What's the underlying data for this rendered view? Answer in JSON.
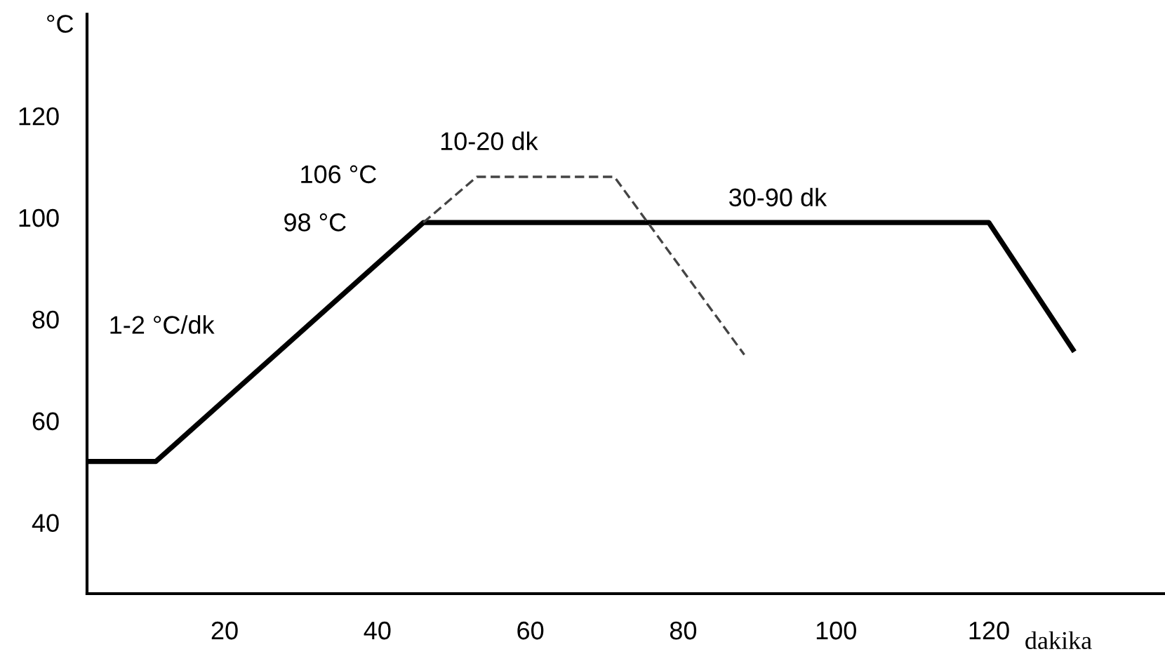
{
  "chart_data": {
    "type": "line",
    "xlabel": "dakika",
    "ylabel": "°C",
    "xlim": [
      2,
      143
    ],
    "ylim": [
      26,
      140
    ],
    "xticks": [
      20,
      40,
      60,
      80,
      100,
      120
    ],
    "yticks": [
      40,
      60,
      80,
      100,
      120
    ],
    "grid": false,
    "marker": "none",
    "series": [
      {
        "color": "#000000",
        "line_style": "solid",
        "x": [
          2,
          11,
          46,
          120,
          131
        ],
        "values": [
          52,
          52,
          99,
          99,
          74
        ]
      },
      {
        "color": "#444444",
        "line_style": "dashed",
        "x": [
          46,
          53,
          71,
          88
        ],
        "values": [
          99,
          108,
          108,
          73
        ]
      }
    ],
    "annotations": [
      "1-2 °C/dk",
      "106 °C",
      "98 °C",
      "10-20 dk",
      "30-90 dk"
    ]
  }
}
